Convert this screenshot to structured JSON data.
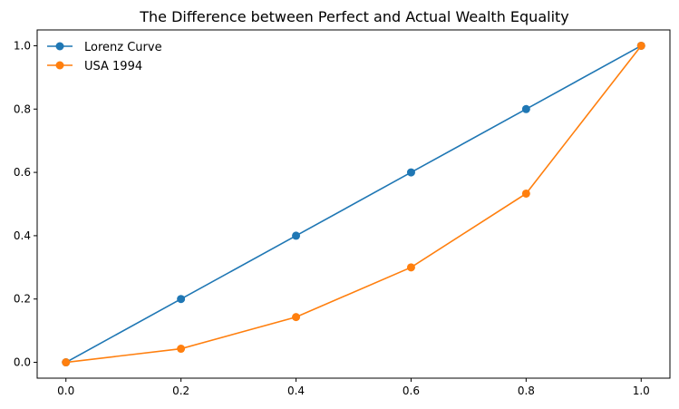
{
  "chart_data": {
    "type": "line",
    "title": "The Difference between Perfect and Actual Wealth Equality",
    "xlabel": "",
    "ylabel": "",
    "xlim": [
      -0.05,
      1.05
    ],
    "ylim": [
      -0.05,
      1.05
    ],
    "x_ticks": [
      0.0,
      0.2,
      0.4,
      0.6,
      0.8,
      1.0
    ],
    "y_ticks": [
      0.0,
      0.2,
      0.4,
      0.6,
      0.8,
      1.0
    ],
    "x_tick_labels": [
      "0.0",
      "0.2",
      "0.4",
      "0.6",
      "0.8",
      "1.0"
    ],
    "y_tick_labels": [
      "0.0",
      "0.2",
      "0.4",
      "0.6",
      "0.8",
      "1.0"
    ],
    "grid": false,
    "legend_position": "top-left",
    "series": [
      {
        "name": "Lorenz Curve",
        "color": "#1f77b4",
        "x": [
          0.0,
          0.2,
          0.4,
          0.6,
          0.8,
          1.0
        ],
        "y": [
          0.0,
          0.2,
          0.4,
          0.6,
          0.8,
          1.0
        ]
      },
      {
        "name": "USA 1994",
        "color": "#ff7f0e",
        "x": [
          0.0,
          0.2,
          0.4,
          0.6,
          0.8,
          1.0
        ],
        "y": [
          0.0,
          0.043,
          0.143,
          0.3,
          0.533,
          1.0
        ]
      }
    ]
  }
}
